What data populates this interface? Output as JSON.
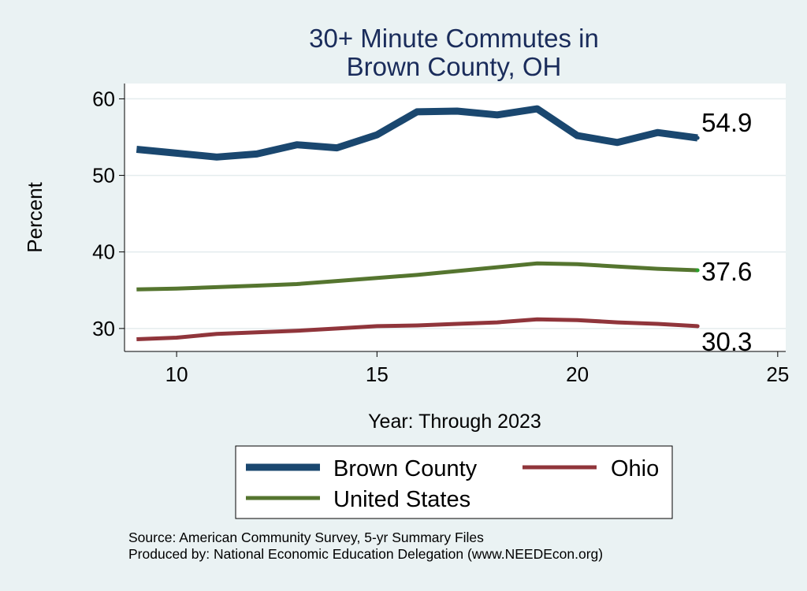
{
  "chart_data": {
    "type": "line",
    "title_lines": [
      "30+ Minute Commutes in",
      "Brown County, OH"
    ],
    "xlabel": "Year: Through 2023",
    "ylabel": "Percent",
    "xlim": [
      8.7,
      25.2
    ],
    "ylim": [
      27,
      62
    ],
    "xticks": [
      10,
      15,
      20,
      25
    ],
    "yticks": [
      30,
      40,
      50,
      60
    ],
    "grid": "horizontal",
    "legend_position": "bottom",
    "x": [
      9,
      10,
      11,
      12,
      13,
      14,
      15,
      16,
      17,
      18,
      19,
      20,
      21,
      22,
      23
    ],
    "series": [
      {
        "name": "Brown County",
        "color": "#1a476f",
        "values": [
          53.4,
          52.9,
          52.4,
          52.8,
          54.0,
          53.6,
          55.3,
          58.3,
          58.4,
          57.9,
          58.7,
          55.2,
          54.3,
          55.6,
          54.9
        ],
        "end_label": "54.9"
      },
      {
        "name": "United States",
        "color": "#55752f",
        "values": [
          35.1,
          35.2,
          35.4,
          35.6,
          35.8,
          36.2,
          36.6,
          37.0,
          37.5,
          38.0,
          38.5,
          38.4,
          38.1,
          37.8,
          37.6
        ],
        "end_label": "37.6"
      },
      {
        "name": "Ohio",
        "color": "#90353b",
        "values": [
          28.6,
          28.8,
          29.3,
          29.5,
          29.7,
          30.0,
          30.3,
          30.4,
          30.6,
          30.8,
          31.2,
          31.1,
          30.8,
          30.6,
          30.3
        ],
        "end_label": "30.3"
      }
    ],
    "legend_order": [
      "Brown County",
      "Ohio",
      "United States"
    ],
    "notes": [
      "Source: American Community Survey, 5-yr Summary Files",
      "Produced by: National Economic Education Delegation (www.NEEDEcon.org)"
    ]
  },
  "colors": {
    "background": "#eaf2f3",
    "plot_background": "#ffffff",
    "title": "#1a2c5b"
  }
}
